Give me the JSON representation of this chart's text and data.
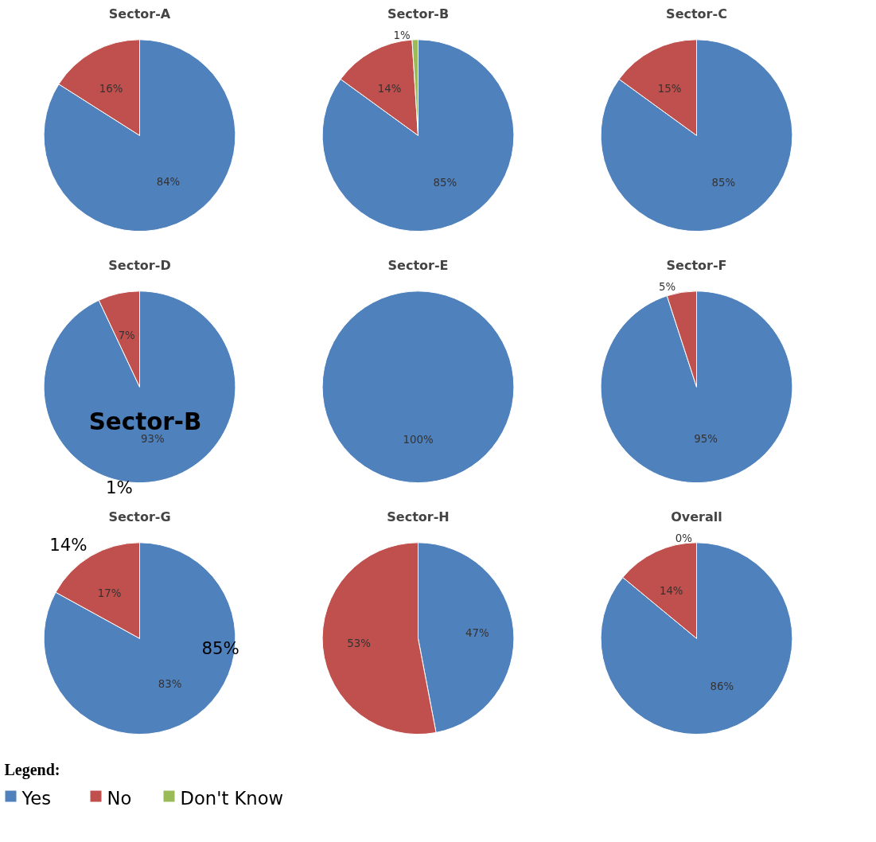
{
  "chart_data": [
    {
      "type": "pie",
      "title": "Sector-A",
      "categories": [
        "Yes",
        "No",
        "Don't Know"
      ],
      "values": [
        84,
        16,
        0
      ],
      "colors": [
        "#4f81bd",
        "#c0504d",
        "#9bbb59"
      ],
      "value_labels": [
        "84%",
        "16%",
        null
      ],
      "legend": "bottom",
      "legend_title": "Legend:"
    },
    {
      "type": "pie",
      "title": "Sector-B",
      "categories": [
        null,
        null,
        null
      ],
      "values": [
        85,
        14,
        1
      ],
      "colors": [
        "#4f81bd",
        "#c0504d",
        "#9bbb59"
      ],
      "value_labels": [
        "85%",
        "14%",
        "1%"
      ]
    },
    {
      "type": "pie",
      "title": "Sector-C",
      "categories": [
        null,
        null
      ],
      "values": [
        85,
        15
      ],
      "colors": [
        "#4f81bd",
        "#c0504d"
      ],
      "value_labels": [
        "85%",
        "15%"
      ]
    },
    {
      "type": "pie",
      "title": "Sector-D",
      "categories": [
        null,
        null
      ],
      "values": [
        93,
        7
      ],
      "colors": [
        "#4f81bd",
        "#c0504d"
      ],
      "value_labels": [
        "93%",
        "7%"
      ],
      "annotations": [
        "Sector-B",
        "1%"
      ]
    },
    {
      "type": "pie",
      "title": "Sector-E",
      "categories": [
        null
      ],
      "values": [
        100
      ],
      "colors": [
        "#4f81bd"
      ],
      "value_labels": [
        "100%"
      ]
    },
    {
      "type": "pie",
      "title": "Sector-F",
      "categories": [
        null,
        null
      ],
      "values": [
        95,
        5
      ],
      "colors": [
        "#4f81bd",
        "#c0504d"
      ],
      "value_labels": [
        "95%",
        "5%"
      ]
    },
    {
      "type": "pie",
      "title": "Sector-G",
      "categories": [
        null,
        null
      ],
      "values": [
        83,
        17
      ],
      "colors": [
        "#4f81bd",
        "#c0504d"
      ],
      "value_labels": [
        "83%",
        "17%"
      ],
      "annotations": [
        "14%",
        "85%"
      ]
    },
    {
      "type": "pie",
      "title": "Sector-H",
      "categories": [
        null,
        null
      ],
      "values": [
        47,
        53
      ],
      "colors": [
        "#4f81bd",
        "#c0504d"
      ],
      "value_labels": [
        "47%",
        "53%"
      ]
    },
    {
      "type": "pie",
      "title": "Overall",
      "categories": [
        null,
        null,
        null
      ],
      "values": [
        86,
        14,
        0
      ],
      "colors": [
        "#4f81bd",
        "#c0504d",
        "#9bbb59"
      ],
      "value_labels": [
        "86%",
        "14%",
        "0%"
      ]
    }
  ]
}
